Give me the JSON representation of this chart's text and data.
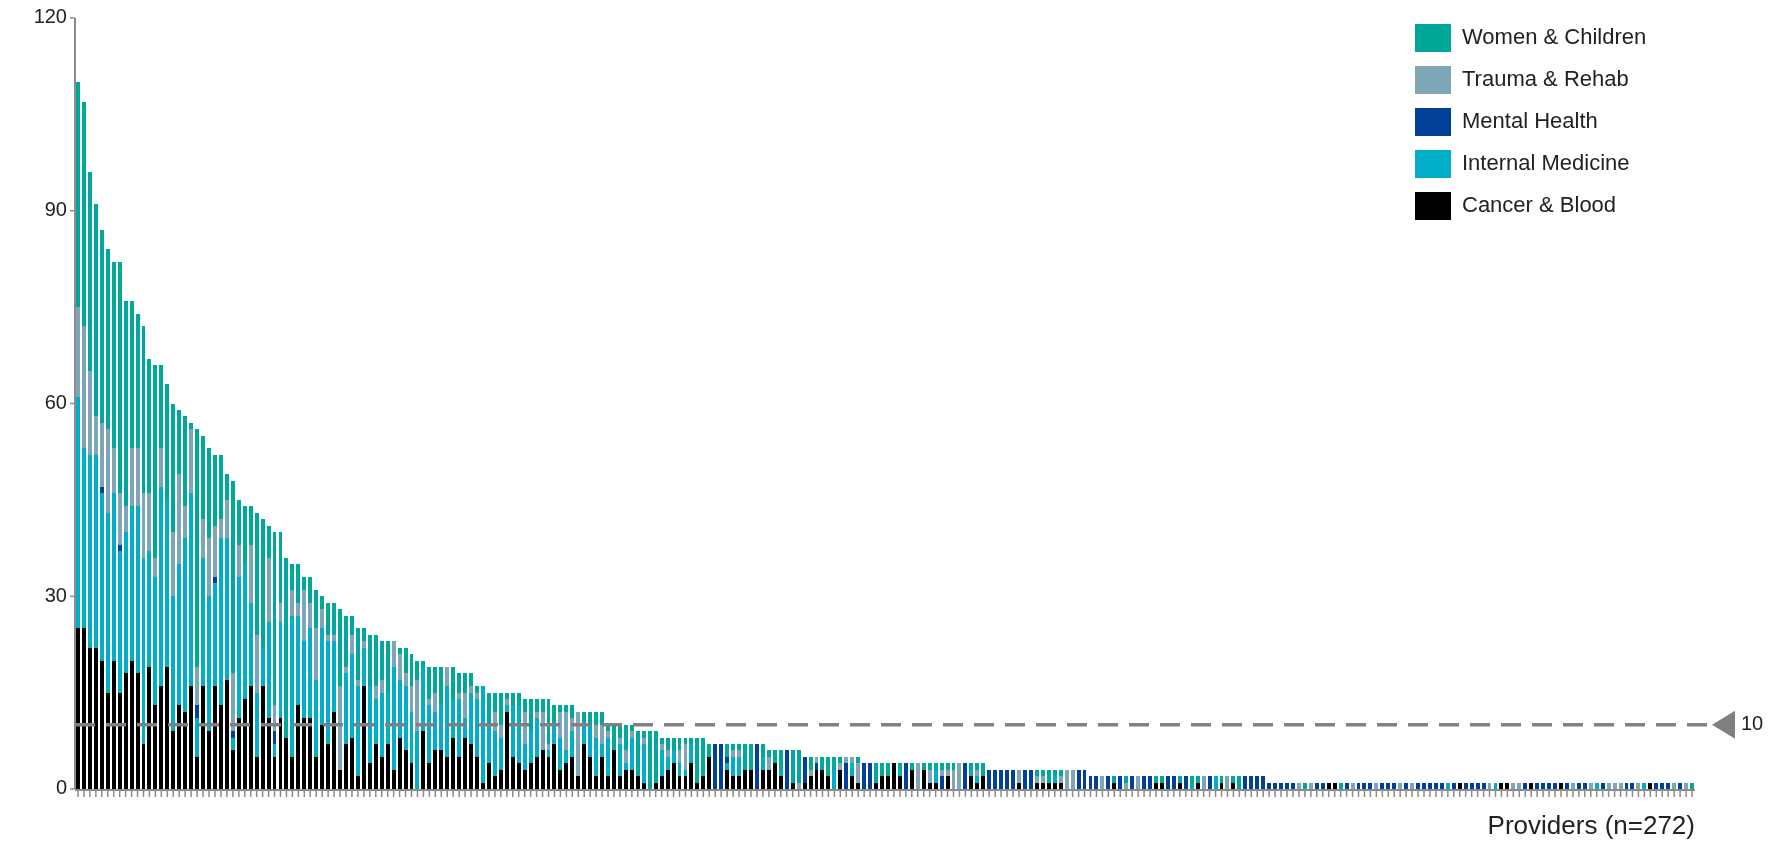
{
  "chart_data": {
    "type": "bar",
    "stacked": true,
    "xlabel": "Providers (n=272)",
    "legend": "top right",
    "ylim": [
      0,
      120
    ],
    "yticks": [
      0,
      30,
      60,
      90,
      120
    ],
    "ref_lines": [
      {
        "axis": "y",
        "value": 10,
        "label": "10",
        "color": "#808080",
        "line_style": "dashed"
      }
    ],
    "categories": [
      null,
      null,
      null,
      null,
      null,
      null,
      null,
      null,
      null,
      null,
      null,
      null,
      null,
      null,
      null,
      null,
      null,
      null,
      null,
      null,
      null,
      null,
      null,
      null,
      null,
      null,
      null,
      null,
      null,
      null,
      null,
      null,
      null,
      null,
      null,
      null,
      null,
      null,
      null,
      null,
      null,
      null,
      null,
      null,
      null,
      null,
      null,
      null,
      null,
      null,
      null,
      null,
      null,
      null,
      null,
      null,
      null,
      null,
      null,
      null,
      null,
      null,
      null,
      null,
      null,
      null,
      null,
      null,
      null,
      null,
      null,
      null,
      null,
      null,
      null,
      null,
      null,
      null,
      null,
      null,
      null,
      null,
      null,
      null,
      null,
      null,
      null,
      null,
      null,
      null,
      null,
      null,
      null,
      null,
      null,
      null,
      null,
      null,
      null,
      null,
      null,
      null,
      null,
      null,
      null,
      null,
      null,
      null,
      null,
      null,
      null,
      null,
      null,
      null,
      null,
      null,
      null,
      null,
      null,
      null,
      null,
      null,
      null,
      null,
      null,
      null,
      null,
      null,
      null,
      null,
      null,
      null,
      null,
      null,
      null,
      null,
      null,
      null,
      null,
      null,
      null,
      null,
      null,
      null,
      null,
      null,
      null,
      null,
      null,
      null,
      null,
      null,
      null,
      null,
      null,
      null,
      null,
      null,
      null,
      null,
      null,
      null,
      null,
      null,
      null,
      null,
      null,
      null,
      null,
      null,
      null,
      null,
      null,
      null,
      null,
      null,
      null,
      null,
      null,
      null,
      null,
      null,
      null,
      null,
      null,
      null,
      null,
      null,
      null,
      null,
      null,
      null,
      null,
      null,
      null,
      null,
      null,
      null,
      null,
      null,
      null,
      null,
      null,
      null,
      null,
      null,
      null,
      null,
      null,
      null,
      null,
      null,
      null,
      null,
      null,
      null,
      null,
      null,
      null,
      null,
      null,
      null,
      null,
      null,
      null,
      null,
      null,
      null,
      null,
      null,
      null,
      null,
      null,
      null,
      null,
      null,
      null,
      null,
      null,
      null,
      null,
      null,
      null,
      null,
      null,
      null,
      null,
      null,
      null,
      null,
      null,
      null,
      null,
      null,
      null,
      null,
      null,
      null,
      null,
      null,
      null,
      null,
      null,
      null,
      null,
      null,
      null,
      null,
      null,
      null,
      null,
      null
    ],
    "series": [
      {
        "name": "Cancer & Blood",
        "color": "#000000",
        "values": [
          25,
          25,
          22,
          22,
          20,
          15,
          20,
          15,
          18,
          20,
          18,
          7,
          19,
          13,
          16,
          19,
          9,
          13,
          12,
          16,
          5,
          16,
          9,
          16,
          13,
          17,
          6,
          11,
          14,
          16,
          5,
          16,
          11,
          5,
          11,
          8,
          5,
          13,
          11,
          11,
          5,
          10,
          7,
          12,
          3,
          7,
          8,
          2,
          16,
          4,
          7,
          5,
          7,
          3,
          8,
          6,
          4,
          0,
          9,
          4,
          6,
          6,
          5,
          8,
          5,
          8,
          7,
          5,
          1,
          4,
          2,
          3,
          12,
          5,
          4,
          3,
          4,
          5,
          6,
          5,
          7,
          3,
          4,
          5,
          2,
          7,
          5,
          2,
          5,
          2,
          6,
          2,
          3,
          3,
          2,
          1,
          0,
          1,
          2,
          3,
          4,
          2,
          2,
          4,
          1,
          2,
          5,
          0,
          0,
          3,
          2,
          2,
          3,
          3,
          0,
          3,
          3,
          4,
          2,
          0,
          1,
          0,
          1,
          2,
          3,
          3,
          2,
          0,
          3,
          0,
          2,
          1,
          0,
          0,
          1,
          2,
          2,
          4,
          2,
          0,
          3,
          0,
          3,
          1,
          1,
          0,
          2,
          0,
          0,
          0,
          2,
          1,
          2,
          0,
          0,
          0,
          0,
          0,
          1,
          0,
          0,
          1,
          1,
          1,
          1,
          1,
          0,
          0,
          0,
          0,
          0,
          0,
          0,
          0,
          1,
          0,
          0,
          0,
          0,
          0,
          0,
          1,
          1,
          0,
          0,
          1,
          0,
          0,
          1,
          0,
          0,
          0,
          1,
          0,
          1,
          0,
          0,
          0,
          0,
          0,
          0,
          0,
          0,
          0,
          0,
          0,
          0,
          0,
          0,
          0,
          1,
          1,
          0,
          0,
          0,
          0,
          0,
          0,
          0,
          0,
          0,
          0,
          0,
          0,
          0,
          0,
          0,
          0,
          0,
          0,
          0,
          0,
          1,
          0,
          0,
          0,
          0,
          0,
          0,
          1,
          1,
          0,
          0,
          0,
          1,
          0,
          0,
          0,
          0,
          1,
          0,
          0,
          0,
          0,
          0,
          0,
          0,
          0,
          0,
          0,
          0,
          0,
          0,
          0,
          1,
          0,
          0,
          0,
          0,
          0,
          0,
          0
        ]
      },
      {
        "name": "Internal Medicine",
        "color": "#00aec7",
        "values": [
          36,
          28,
          30,
          30,
          26,
          28,
          26,
          22,
          22,
          24,
          26,
          29,
          18,
          20,
          31,
          26,
          21,
          22,
          27,
          30,
          6,
          20,
          21,
          16,
          26,
          22,
          2,
          22,
          21,
          13,
          10,
          6,
          15,
          2,
          15,
          0,
          22,
          14,
          12,
          14,
          12,
          15,
          16,
          11,
          0,
          11,
          13,
          14,
          6,
          12,
          7,
          10,
          8,
          16,
          9,
          10,
          8,
          9,
          10,
          9,
          6,
          7,
          11,
          6,
          9,
          3,
          8,
          9,
          15,
          6,
          7,
          5,
          1,
          8,
          9,
          4,
          5,
          6,
          0,
          1,
          3,
          5,
          2,
          4,
          0,
          3,
          5,
          6,
          2,
          6,
          0,
          5,
          1,
          5,
          0,
          6,
          0,
          0,
          4,
          2,
          2,
          2,
          1,
          3,
          0,
          0,
          0,
          0,
          0,
          1,
          3,
          3,
          0,
          0,
          0,
          2,
          0,
          0,
          1,
          0,
          0,
          0,
          0,
          0,
          0,
          0,
          0,
          3,
          0,
          0,
          2,
          0,
          0,
          0,
          0,
          0,
          0,
          0,
          1,
          0,
          0,
          0,
          0,
          0,
          2,
          0,
          0,
          0,
          0,
          0,
          1,
          1,
          0,
          0,
          0,
          0,
          0,
          0,
          0,
          0,
          0,
          0,
          0,
          0,
          1,
          0,
          0,
          0,
          0,
          0,
          0,
          0,
          0,
          0,
          0,
          0,
          0,
          0,
          0,
          0,
          0,
          0,
          0,
          0,
          0,
          0,
          0,
          1,
          0,
          0,
          0,
          2,
          0,
          0,
          0,
          0,
          0,
          0,
          0,
          0,
          0,
          0,
          0,
          0,
          0,
          0,
          0,
          0,
          0,
          0,
          0,
          0,
          0,
          0,
          0,
          0,
          0,
          0,
          0,
          0,
          0,
          0,
          0,
          0,
          0,
          0,
          0,
          0,
          0,
          0,
          1,
          0,
          0,
          0,
          0,
          0,
          0,
          0,
          1,
          0,
          0,
          0,
          0,
          0,
          0,
          0,
          0,
          0,
          0,
          0,
          0,
          0,
          0,
          0,
          0,
          1,
          0,
          0,
          0,
          0,
          0,
          0,
          0,
          1,
          0,
          0,
          0,
          0,
          0,
          0,
          0,
          0
        ]
      },
      {
        "name": "Mental Health",
        "color": "#023f98",
        "values": [
          0,
          0,
          0,
          0,
          1,
          0,
          0,
          1,
          0,
          0,
          0,
          0,
          0,
          0,
          0,
          0,
          0,
          0,
          0,
          0,
          2,
          0,
          0,
          1,
          0,
          0,
          1,
          0,
          0,
          0,
          0,
          0,
          0,
          2,
          0,
          0,
          0,
          0,
          0,
          0,
          0,
          0,
          0,
          0,
          0,
          0,
          0,
          0,
          0,
          0,
          0,
          0,
          0,
          0,
          0,
          0,
          0,
          0,
          0,
          0,
          0,
          0,
          0,
          0,
          0,
          0,
          0,
          0,
          0,
          0,
          0,
          0,
          0,
          0,
          0,
          0,
          0,
          0,
          0,
          0,
          0,
          0,
          0,
          0,
          0,
          0,
          0,
          0,
          0,
          0,
          0,
          0,
          0,
          0,
          0,
          0,
          0,
          0,
          0,
          0,
          0,
          0,
          0,
          0,
          0,
          0,
          0,
          7,
          7,
          1,
          0,
          0,
          0,
          0,
          7,
          0,
          0,
          0,
          0,
          6,
          0,
          0,
          4,
          0,
          1,
          0,
          0,
          0,
          0,
          4,
          0,
          0,
          4,
          4,
          0,
          0,
          0,
          0,
          0,
          4,
          0,
          0,
          0,
          0,
          0,
          2,
          0,
          0,
          0,
          4,
          0,
          0,
          0,
          3,
          3,
          3,
          3,
          3,
          0,
          3,
          3,
          0,
          0,
          0,
          0,
          0,
          0,
          0,
          3,
          3,
          2,
          2,
          0,
          2,
          0,
          2,
          0,
          2,
          0,
          2,
          2,
          0,
          0,
          2,
          2,
          0,
          2,
          0,
          0,
          0,
          2,
          0,
          0,
          0,
          0,
          0,
          2,
          2,
          2,
          2,
          1,
          1,
          1,
          1,
          1,
          0,
          0,
          0,
          1,
          1,
          0,
          0,
          0,
          1,
          0,
          1,
          1,
          1,
          0,
          1,
          1,
          1,
          0,
          1,
          0,
          1,
          1,
          1,
          1,
          1,
          0,
          1,
          0,
          1,
          1,
          1,
          1,
          0,
          0,
          0,
          0,
          0,
          0,
          1,
          0,
          1,
          1,
          1,
          1,
          0,
          1,
          0,
          1,
          1,
          0,
          0,
          1,
          0,
          0,
          0,
          1,
          1,
          0,
          0,
          0,
          1,
          1,
          1,
          0,
          1,
          0,
          0
        ]
      },
      {
        "name": "Trauma & Rehab",
        "color": "#7ea6b6",
        "values": [
          14,
          19,
          13,
          6,
          10,
          13,
          7,
          8,
          4,
          9,
          9,
          10,
          9,
          3,
          6,
          0,
          10,
          14,
          5,
          10,
          6,
          6,
          9,
          8,
          3,
          6,
          9,
          5,
          0,
          9,
          9,
          0,
          10,
          4,
          3,
          0,
          4,
          2,
          8,
          4,
          8,
          3,
          1,
          1,
          13,
          1,
          3,
          1,
          1,
          0,
          2,
          2,
          0,
          4,
          4,
          2,
          4,
          8,
          0,
          1,
          3,
          0,
          3,
          0,
          1,
          4,
          1,
          1,
          0,
          0,
          3,
          2,
          1,
          0,
          0,
          5,
          0,
          1,
          6,
          1,
          0,
          4,
          6,
          2,
          10,
          0,
          0,
          2,
          3,
          1,
          0,
          1,
          2,
          1,
          0,
          1,
          0,
          0,
          1,
          1,
          0,
          2,
          4,
          0,
          0,
          0,
          0,
          0,
          0,
          0,
          1,
          1,
          0,
          0,
          0,
          0,
          2,
          0,
          0,
          0,
          0,
          1,
          0,
          1,
          1,
          0,
          0,
          0,
          1,
          1,
          1,
          3,
          0,
          0,
          0,
          0,
          0,
          0,
          0,
          0,
          0,
          4,
          0,
          2,
          0,
          1,
          1,
          3,
          4,
          0,
          0,
          1,
          0,
          0,
          0,
          0,
          0,
          0,
          2,
          0,
          0,
          1,
          1,
          0,
          0,
          1,
          3,
          3,
          0,
          0,
          0,
          0,
          2,
          0,
          0,
          0,
          1,
          0,
          2,
          0,
          0,
          0,
          0,
          0,
          0,
          0,
          0,
          0,
          0,
          2,
          0,
          0,
          0,
          2,
          0,
          0,
          0,
          0,
          0,
          0,
          0,
          0,
          0,
          0,
          0,
          1,
          0,
          1,
          0,
          0,
          0,
          0,
          0,
          0,
          1,
          0,
          0,
          0,
          1,
          0,
          0,
          0,
          1,
          0,
          1,
          0,
          0,
          0,
          0,
          0,
          0,
          0,
          0,
          0,
          0,
          0,
          0,
          1,
          0,
          0,
          0,
          1,
          1,
          0,
          0,
          0,
          0,
          0,
          0,
          0,
          0,
          1,
          0,
          0,
          1,
          0,
          0,
          1,
          1,
          1,
          0,
          0,
          1,
          0,
          0,
          0,
          0,
          0,
          1,
          0,
          1,
          0
        ]
      },
      {
        "name": "Women & Children",
        "color": "#00a89a",
        "values": [
          35,
          35,
          31,
          33,
          30,
          28,
          29,
          36,
          32,
          23,
          21,
          26,
          21,
          30,
          13,
          18,
          20,
          10,
          14,
          1,
          37,
          13,
          14,
          11,
          10,
          4,
          30,
          7,
          9,
          6,
          19,
          20,
          5,
          27,
          11,
          28,
          4,
          6,
          2,
          4,
          6,
          2,
          5,
          5,
          12,
          8,
          3,
          8,
          2,
          8,
          8,
          6,
          8,
          0,
          1,
          4,
          5,
          3,
          1,
          5,
          4,
          6,
          0,
          5,
          3,
          3,
          2,
          1,
          0,
          5,
          3,
          5,
          1,
          2,
          2,
          2,
          5,
          2,
          2,
          7,
          3,
          1,
          1,
          2,
          0,
          2,
          2,
          2,
          2,
          1,
          4,
          2,
          4,
          1,
          7,
          1,
          9,
          8,
          1,
          2,
          2,
          2,
          1,
          1,
          7,
          6,
          2,
          0,
          0,
          2,
          1,
          1,
          4,
          4,
          0,
          2,
          1,
          2,
          3,
          0,
          5,
          5,
          0,
          2,
          0,
          2,
          3,
          2,
          1,
          0,
          0,
          1,
          0,
          0,
          3,
          2,
          2,
          0,
          1,
          0,
          1,
          0,
          1,
          1,
          1,
          1,
          1,
          1,
          0,
          0,
          1,
          1,
          2,
          0,
          0,
          0,
          0,
          0,
          0,
          0,
          0,
          1,
          1,
          2,
          1,
          1,
          0,
          0,
          0,
          0,
          0,
          0,
          0,
          0,
          1,
          0,
          1,
          0,
          0,
          0,
          0,
          1,
          1,
          0,
          0,
          1,
          0,
          1,
          1,
          0,
          0,
          0,
          1,
          0,
          1,
          2,
          0,
          0,
          0,
          0,
          0,
          0,
          0,
          0,
          0,
          0,
          1,
          0,
          0,
          0,
          0,
          0,
          1,
          0,
          0,
          0,
          0,
          0,
          0,
          0,
          0,
          0,
          0,
          0,
          0,
          0,
          0,
          0,
          0,
          0,
          0,
          0,
          0,
          0,
          0,
          0,
          0,
          0,
          0,
          0,
          0,
          0,
          0,
          0,
          0,
          0,
          0,
          0,
          0,
          0,
          0,
          0,
          0,
          0,
          0,
          0,
          0,
          0,
          0,
          0,
          0,
          0,
          0,
          0,
          0,
          0,
          0,
          0,
          0,
          0,
          0,
          1
        ]
      }
    ]
  }
}
